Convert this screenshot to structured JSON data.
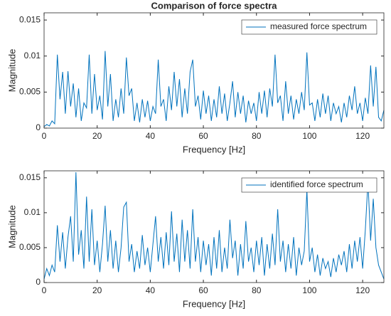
{
  "chart_data": [
    {
      "type": "line",
      "title": "Comparison of force spectra",
      "xlabel": "Frequency [Hz]",
      "ylabel": "Magnitude",
      "xlim": [
        0,
        128
      ],
      "xticks": [
        0,
        20,
        40,
        60,
        80,
        100,
        120
      ],
      "ylim": [
        0,
        0.016
      ],
      "yticks": [
        0,
        0.005,
        0.01,
        0.015
      ],
      "legend": "northeast",
      "x": [
        0,
        1,
        2,
        3,
        4,
        5,
        6,
        7,
        8,
        9,
        10,
        11,
        12,
        13,
        14,
        15,
        16,
        17,
        18,
        19,
        20,
        21,
        22,
        23,
        24,
        25,
        26,
        27,
        28,
        29,
        30,
        31,
        32,
        33,
        34,
        35,
        36,
        37,
        38,
        39,
        40,
        41,
        42,
        43,
        44,
        45,
        46,
        47,
        48,
        49,
        50,
        51,
        52,
        53,
        54,
        55,
        56,
        57,
        58,
        59,
        60,
        61,
        62,
        63,
        64,
        65,
        66,
        67,
        68,
        69,
        70,
        71,
        72,
        73,
        74,
        75,
        76,
        77,
        78,
        79,
        80,
        81,
        82,
        83,
        84,
        85,
        86,
        87,
        88,
        89,
        90,
        91,
        92,
        93,
        94,
        95,
        96,
        97,
        98,
        99,
        100,
        101,
        102,
        103,
        104,
        105,
        106,
        107,
        108,
        109,
        110,
        111,
        112,
        113,
        114,
        115,
        116,
        117,
        118,
        119,
        120,
        121,
        122,
        123,
        124,
        125,
        126,
        127,
        128
      ],
      "series": [
        {
          "name": "measured force spectrum",
          "color": "#0072bd",
          "values": [
            0.0002,
            0.0005,
            0.0003,
            0.001,
            0.0006,
            0.0102,
            0.004,
            0.0078,
            0.002,
            0.0079,
            0.003,
            0.0062,
            0.0015,
            0.0055,
            0.001,
            0.0035,
            0.0028,
            0.0102,
            0.002,
            0.0075,
            0.0025,
            0.0045,
            0.0012,
            0.0107,
            0.003,
            0.0075,
            0.001,
            0.004,
            0.0015,
            0.0055,
            0.002,
            0.0098,
            0.0045,
            0.0055,
            0.001,
            0.0035,
            0.0008,
            0.004,
            0.0015,
            0.0038,
            0.001,
            0.003,
            0.002,
            0.0095,
            0.003,
            0.004,
            0.001,
            0.0058,
            0.0025,
            0.0078,
            0.003,
            0.0068,
            0.0015,
            0.0055,
            0.002,
            0.0078,
            0.0095,
            0.003,
            0.0045,
            0.0012,
            0.0052,
            0.002,
            0.0045,
            0.001,
            0.004,
            0.0015,
            0.0058,
            0.002,
            0.0048,
            0.001,
            0.0035,
            0.0065,
            0.0015,
            0.005,
            0.002,
            0.0045,
            0.0008,
            0.0038,
            0.002,
            0.0035,
            0.001,
            0.005,
            0.002,
            0.0052,
            0.0015,
            0.0055,
            0.003,
            0.0102,
            0.0035,
            0.0045,
            0.001,
            0.0065,
            0.002,
            0.0045,
            0.0012,
            0.004,
            0.002,
            0.005,
            0.0025,
            0.0105,
            0.0032,
            0.0035,
            0.001,
            0.004,
            0.0015,
            0.0048,
            0.002,
            0.0045,
            0.001,
            0.0035,
            0.002,
            0.003,
            0.0008,
            0.0035,
            0.0015,
            0.0045,
            0.0025,
            0.0058,
            0.002,
            0.0035,
            0.001,
            0.0042,
            0.002,
            0.0087,
            0.003,
            0.0085,
            0.0015,
            0.001,
            0.0025
          ]
        }
      ]
    },
    {
      "type": "line",
      "xlabel": "Frequency [Hz]",
      "ylabel": "Magnitude",
      "xlim": [
        0,
        128
      ],
      "xticks": [
        0,
        20,
        40,
        60,
        80,
        100,
        120
      ],
      "ylim": [
        0,
        0.016
      ],
      "yticks": [
        0,
        0.005,
        0.01,
        0.015
      ],
      "legend": "northeast",
      "x": [
        0,
        1,
        2,
        3,
        4,
        5,
        6,
        7,
        8,
        9,
        10,
        11,
        12,
        13,
        14,
        15,
        16,
        17,
        18,
        19,
        20,
        21,
        22,
        23,
        24,
        25,
        26,
        27,
        28,
        29,
        30,
        31,
        32,
        33,
        34,
        35,
        36,
        37,
        38,
        39,
        40,
        41,
        42,
        43,
        44,
        45,
        46,
        47,
        48,
        49,
        50,
        51,
        52,
        53,
        54,
        55,
        56,
        57,
        58,
        59,
        60,
        61,
        62,
        63,
        64,
        65,
        66,
        67,
        68,
        69,
        70,
        71,
        72,
        73,
        74,
        75,
        76,
        77,
        78,
        79,
        80,
        81,
        82,
        83,
        84,
        85,
        86,
        87,
        88,
        89,
        90,
        91,
        92,
        93,
        94,
        95,
        96,
        97,
        98,
        99,
        100,
        101,
        102,
        103,
        104,
        105,
        106,
        107,
        108,
        109,
        110,
        111,
        112,
        113,
        114,
        115,
        116,
        117,
        118,
        119,
        120,
        121,
        122,
        123,
        124,
        125,
        126,
        127,
        128
      ],
      "series": [
        {
          "name": "identified force spectrum",
          "color": "#0072bd",
          "values": [
            0.0005,
            0.002,
            0.001,
            0.0025,
            0.0015,
            0.0082,
            0.003,
            0.0072,
            0.002,
            0.0065,
            0.0095,
            0.003,
            0.0158,
            0.004,
            0.0075,
            0.002,
            0.0123,
            0.003,
            0.0105,
            0.0025,
            0.006,
            0.0015,
            0.0055,
            0.011,
            0.003,
            0.0075,
            0.002,
            0.006,
            0.0015,
            0.005,
            0.0108,
            0.0115,
            0.003,
            0.0055,
            0.0015,
            0.0045,
            0.002,
            0.0068,
            0.0025,
            0.005,
            0.0015,
            0.0055,
            0.0095,
            0.003,
            0.0065,
            0.002,
            0.0072,
            0.0025,
            0.0102,
            0.003,
            0.007,
            0.0015,
            0.009,
            0.003,
            0.0075,
            0.002,
            0.0105,
            0.003,
            0.0065,
            0.0015,
            0.006,
            0.0025,
            0.0055,
            0.001,
            0.0065,
            0.002,
            0.0075,
            0.0015,
            0.005,
            0.002,
            0.009,
            0.0035,
            0.006,
            0.001,
            0.0055,
            0.002,
            0.0088,
            0.003,
            0.005,
            0.0015,
            0.006,
            0.0025,
            0.0065,
            0.001,
            0.0055,
            0.002,
            0.007,
            0.0025,
            0.0105,
            0.003,
            0.006,
            0.0015,
            0.0055,
            0.002,
            0.0065,
            0.001,
            0.005,
            0.0025,
            0.0045,
            0.0133,
            0.003,
            0.005,
            0.0015,
            0.004,
            0.001,
            0.0035,
            0.002,
            0.003,
            0.0008,
            0.0035,
            0.0015,
            0.004,
            0.0025,
            0.0045,
            0.0015,
            0.0055,
            0.002,
            0.006,
            0.003,
            0.0065,
            0.002,
            0.0075,
            0.0145,
            0.006,
            0.012,
            0.005,
            0.0025,
            0.0015,
            0.0005
          ]
        }
      ]
    }
  ]
}
